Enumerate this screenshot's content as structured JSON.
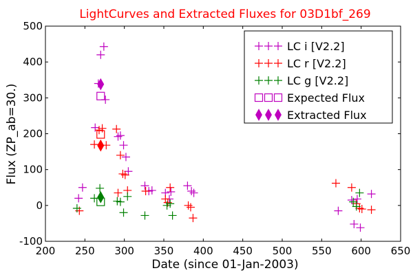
{
  "chart_data": {
    "type": "scatter",
    "title": "LightCurves and Extracted Fluxes for 03D1bf_269",
    "title_color": "#ff0000",
    "xlabel": "Date (since 01-Jan-2003)",
    "ylabel": "Flux (ZP_ab=30.)",
    "xlim": [
      200,
      650
    ],
    "ylim": [
      -100,
      500
    ],
    "xticks": [
      "200",
      "250",
      "300",
      "350",
      "400",
      "450",
      "500",
      "550",
      "600",
      "650"
    ],
    "yticks": [
      "-100",
      "0",
      "100",
      "200",
      "300",
      "400",
      "500"
    ],
    "grid": false,
    "legend_position": "top-right",
    "series": [
      {
        "name": "LC i [V2.2]",
        "marker": "plus",
        "color": "#bf00bf",
        "points": [
          [
            242,
            20
          ],
          [
            247,
            50
          ],
          [
            263,
            217
          ],
          [
            267,
            340
          ],
          [
            270,
            420
          ],
          [
            274,
            443
          ],
          [
            276,
            295
          ],
          [
            292,
            192
          ],
          [
            295,
            195
          ],
          [
            299,
            168
          ],
          [
            302,
            135
          ],
          [
            305,
            95
          ],
          [
            326,
            55
          ],
          [
            331,
            40
          ],
          [
            335,
            42
          ],
          [
            352,
            35
          ],
          [
            357,
            18
          ],
          [
            359,
            38
          ],
          [
            380,
            55
          ],
          [
            385,
            40
          ],
          [
            388,
            35
          ],
          [
            571,
            -15
          ],
          [
            588,
            15
          ],
          [
            591,
            -52
          ],
          [
            595,
            18
          ],
          [
            599,
            -62
          ],
          [
            613,
            32
          ]
        ]
      },
      {
        "name": "LC r [V2.2]",
        "marker": "plus",
        "color": "#ff0000",
        "points": [
          [
            243,
            -15
          ],
          [
            262,
            170
          ],
          [
            268,
            210
          ],
          [
            272,
            215
          ],
          [
            277,
            168
          ],
          [
            290,
            213
          ],
          [
            292,
            35
          ],
          [
            295,
            140
          ],
          [
            298,
            88
          ],
          [
            301,
            85
          ],
          [
            304,
            42
          ],
          [
            327,
            40
          ],
          [
            352,
            18
          ],
          [
            355,
            8
          ],
          [
            358,
            50
          ],
          [
            381,
            0
          ],
          [
            384,
            -5
          ],
          [
            387,
            -35
          ],
          [
            568,
            62
          ],
          [
            588,
            50
          ],
          [
            594,
            5
          ],
          [
            598,
            -8
          ],
          [
            601,
            -10
          ],
          [
            613,
            -12
          ]
        ]
      },
      {
        "name": "LC g [V2.2]",
        "marker": "plus",
        "color": "#008000",
        "points": [
          [
            240,
            -8
          ],
          [
            262,
            20
          ],
          [
            269,
            48
          ],
          [
            291,
            12
          ],
          [
            295,
            10
          ],
          [
            299,
            -20
          ],
          [
            304,
            25
          ],
          [
            326,
            -28
          ],
          [
            354,
            0
          ],
          [
            358,
            5
          ],
          [
            361,
            -28
          ],
          [
            590,
            10
          ],
          [
            594,
            -3
          ],
          [
            598,
            35
          ]
        ]
      },
      {
        "name": "Expected Flux",
        "marker": "square",
        "color": "#bf00bf",
        "edge_colors": [
          "#bf00bf",
          "#ff0000",
          "#008000"
        ],
        "points": [
          [
            270,
            305
          ],
          [
            270,
            198
          ],
          [
            270,
            10
          ]
        ]
      },
      {
        "name": "Extracted Flux",
        "marker": "diamond",
        "color": "#bf00bf",
        "edge_colors": [
          "#bf00bf",
          "#ff0000",
          "#008000"
        ],
        "points": [
          [
            270,
            338
          ],
          [
            270,
            167
          ],
          [
            270,
            23
          ]
        ]
      }
    ]
  }
}
